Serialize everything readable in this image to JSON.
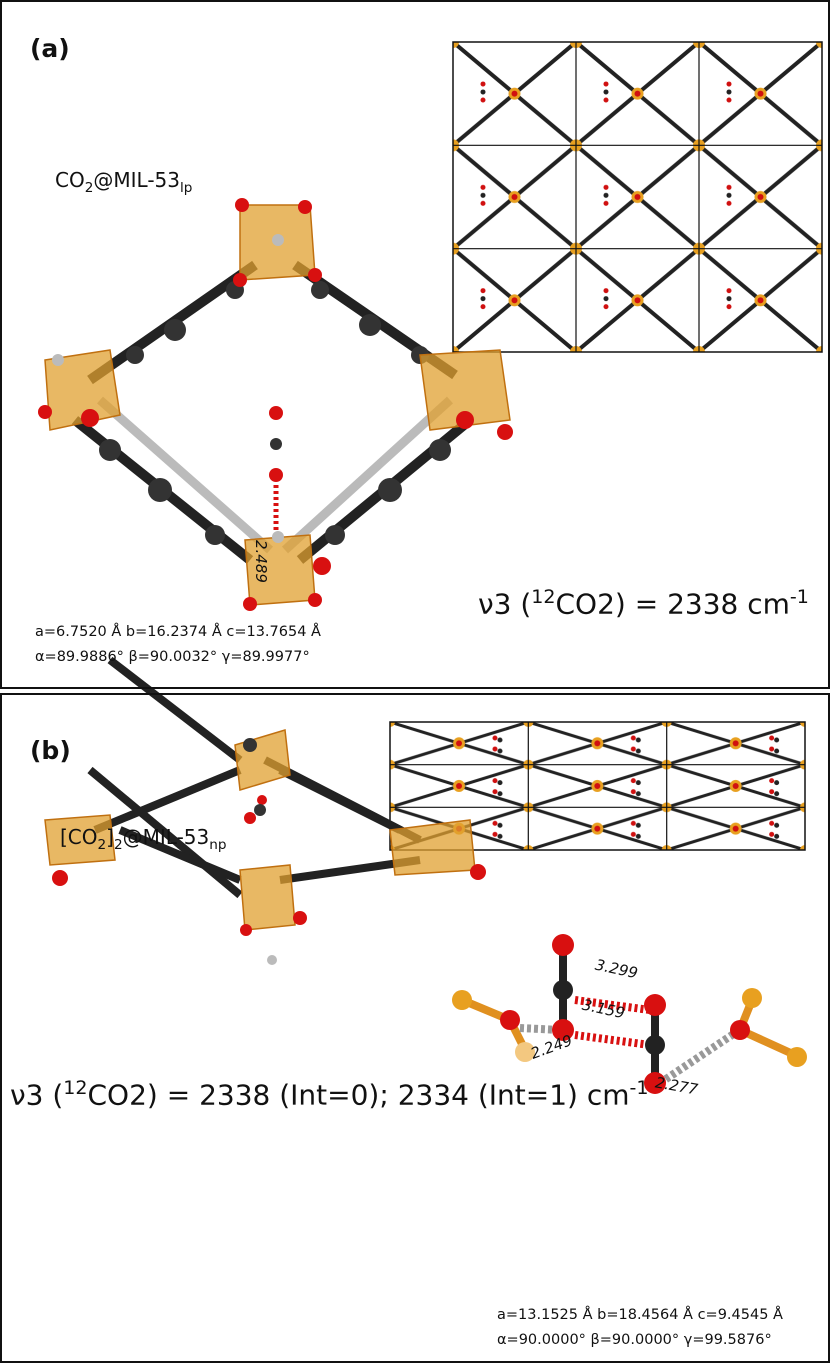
{
  "panels": [
    {
      "label": "(a)",
      "compound": [
        "CO",
        "2",
        "@MIL-53",
        "lp"
      ],
      "frequency": [
        "ν3 (",
        "12",
        "CO2) = 2338 cm",
        "-1"
      ],
      "distances": [
        "2.489"
      ],
      "cell": [
        "a=6.7520 Å b=16.2374 Å c=13.7654 Å",
        "α=89.9886° β=90.0032° γ=89.9977°"
      ]
    },
    {
      "label": "(b)",
      "compound": [
        "[CO",
        "2",
        "]",
        "2",
        "@MIL-53",
        "np"
      ],
      "frequency": [
        "ν3 (",
        "12",
        "CO2) = 2338 (Int=0); 2334 (Int=1) cm",
        "-1"
      ],
      "distances": [
        "3.299",
        "3.159",
        "2.249",
        "2.277"
      ],
      "cell": [
        "a=13.1525 Å b=18.4564 Å c=9.4545 Å",
        "α=90.0000° β=90.0000° γ=99.5876°"
      ]
    }
  ]
}
